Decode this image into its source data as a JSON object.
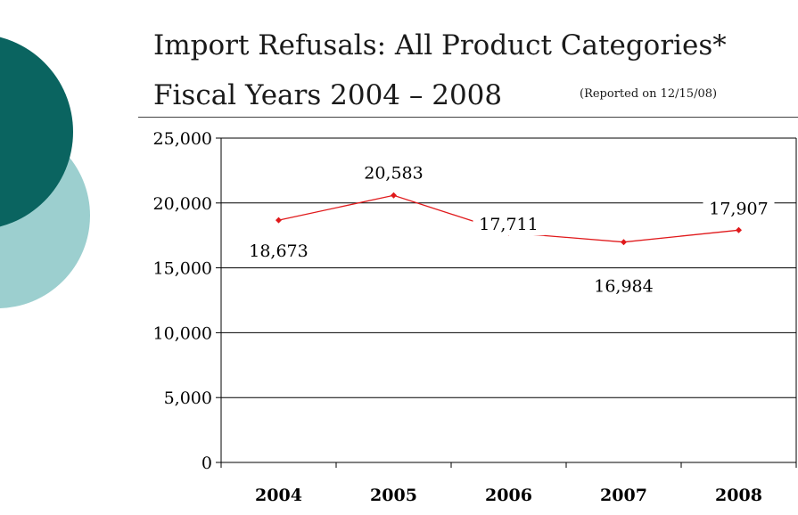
{
  "header": {
    "title_line1": "Import Refusals: All Product Categories*",
    "title_line2": "Fiscal Years 2004 – 2008",
    "subtitle": "(Reported on 12/15/08)"
  },
  "colors": {
    "accent_dark": "#0a6460",
    "accent_light": "#9ccfcf",
    "series": "#e0191b",
    "grid": "#000000"
  },
  "chart_data": {
    "type": "line",
    "categories": [
      "2004",
      "2005",
      "2006",
      "2007",
      "2008"
    ],
    "series": [
      {
        "values": [
          18673,
          20583,
          17711,
          16984,
          17907
        ]
      }
    ],
    "data_labels": [
      "18,673",
      "20,583",
      "17,711",
      "16,984",
      "17,907"
    ],
    "y_ticks": [
      0,
      5000,
      10000,
      15000,
      20000,
      25000
    ],
    "y_tick_labels": [
      "0",
      "5,000",
      "10,000",
      "15,000",
      "20,000",
      "25,000"
    ],
    "ylim": [
      0,
      25000
    ],
    "grid": true,
    "legend": "none",
    "title": "",
    "xlabel": "",
    "ylabel": ""
  }
}
